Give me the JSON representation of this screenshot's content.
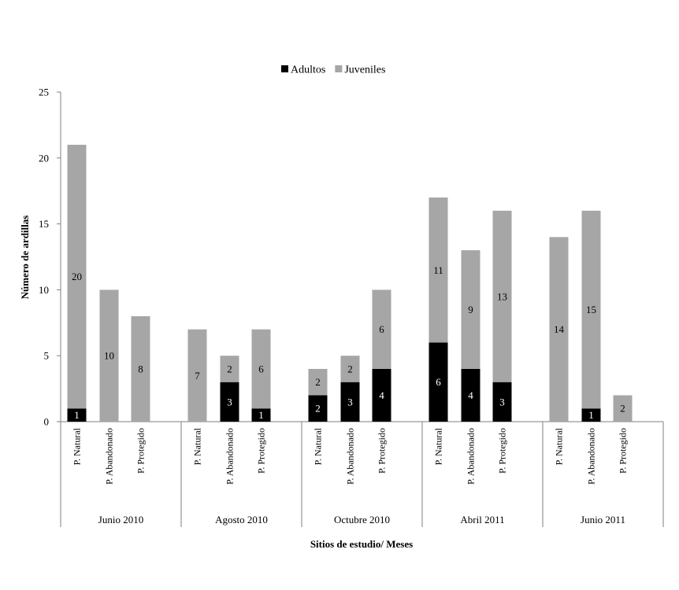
{
  "chart_data": {
    "type": "bar",
    "stacked": true,
    "xlabel": "Sitios de estudio/ Meses",
    "ylabel": "Número de ardillas",
    "ylim": [
      0,
      25
    ],
    "yticks": [
      0,
      5,
      10,
      15,
      20,
      25
    ],
    "grid": false,
    "legend_position": "top-center",
    "groups": [
      "Junio 2010",
      "Agosto 2010",
      "Octubre 2010",
      "Abril 2011",
      "Junio 2011"
    ],
    "sites": [
      "P. Natural",
      "P. Abandonado",
      "P. Protegido"
    ],
    "categories": [
      "Junio 2010 / P. Natural",
      "Junio 2010 / P. Abandonado",
      "Junio 2010 / P. Protegido",
      "Agosto 2010 / P. Natural",
      "Agosto 2010 / P. Abandonado",
      "Agosto 2010 / P. Protegido",
      "Octubre 2010 / P. Natural",
      "Octubre 2010 / P. Abandonado",
      "Octubre 2010 / P. Protegido",
      "Abril 2011 / P. Natural",
      "Abril 2011 / P. Abandonado",
      "Abril 2011 / P. Protegido",
      "Junio 2011 / P. Natural",
      "Junio 2011 / P. Abandonado",
      "Junio 2011 / P. Protegido"
    ],
    "series": [
      {
        "name": "Adultos",
        "color": "#000000",
        "label_color": "#ffffff",
        "values": [
          1,
          0,
          0,
          0,
          3,
          1,
          2,
          3,
          4,
          6,
          4,
          3,
          0,
          1,
          0
        ]
      },
      {
        "name": "Juveniles",
        "color": "#a6a6a6",
        "label_color": "#000000",
        "values": [
          20,
          10,
          8,
          7,
          2,
          6,
          2,
          2,
          6,
          11,
          9,
          13,
          14,
          15,
          2
        ]
      }
    ]
  }
}
